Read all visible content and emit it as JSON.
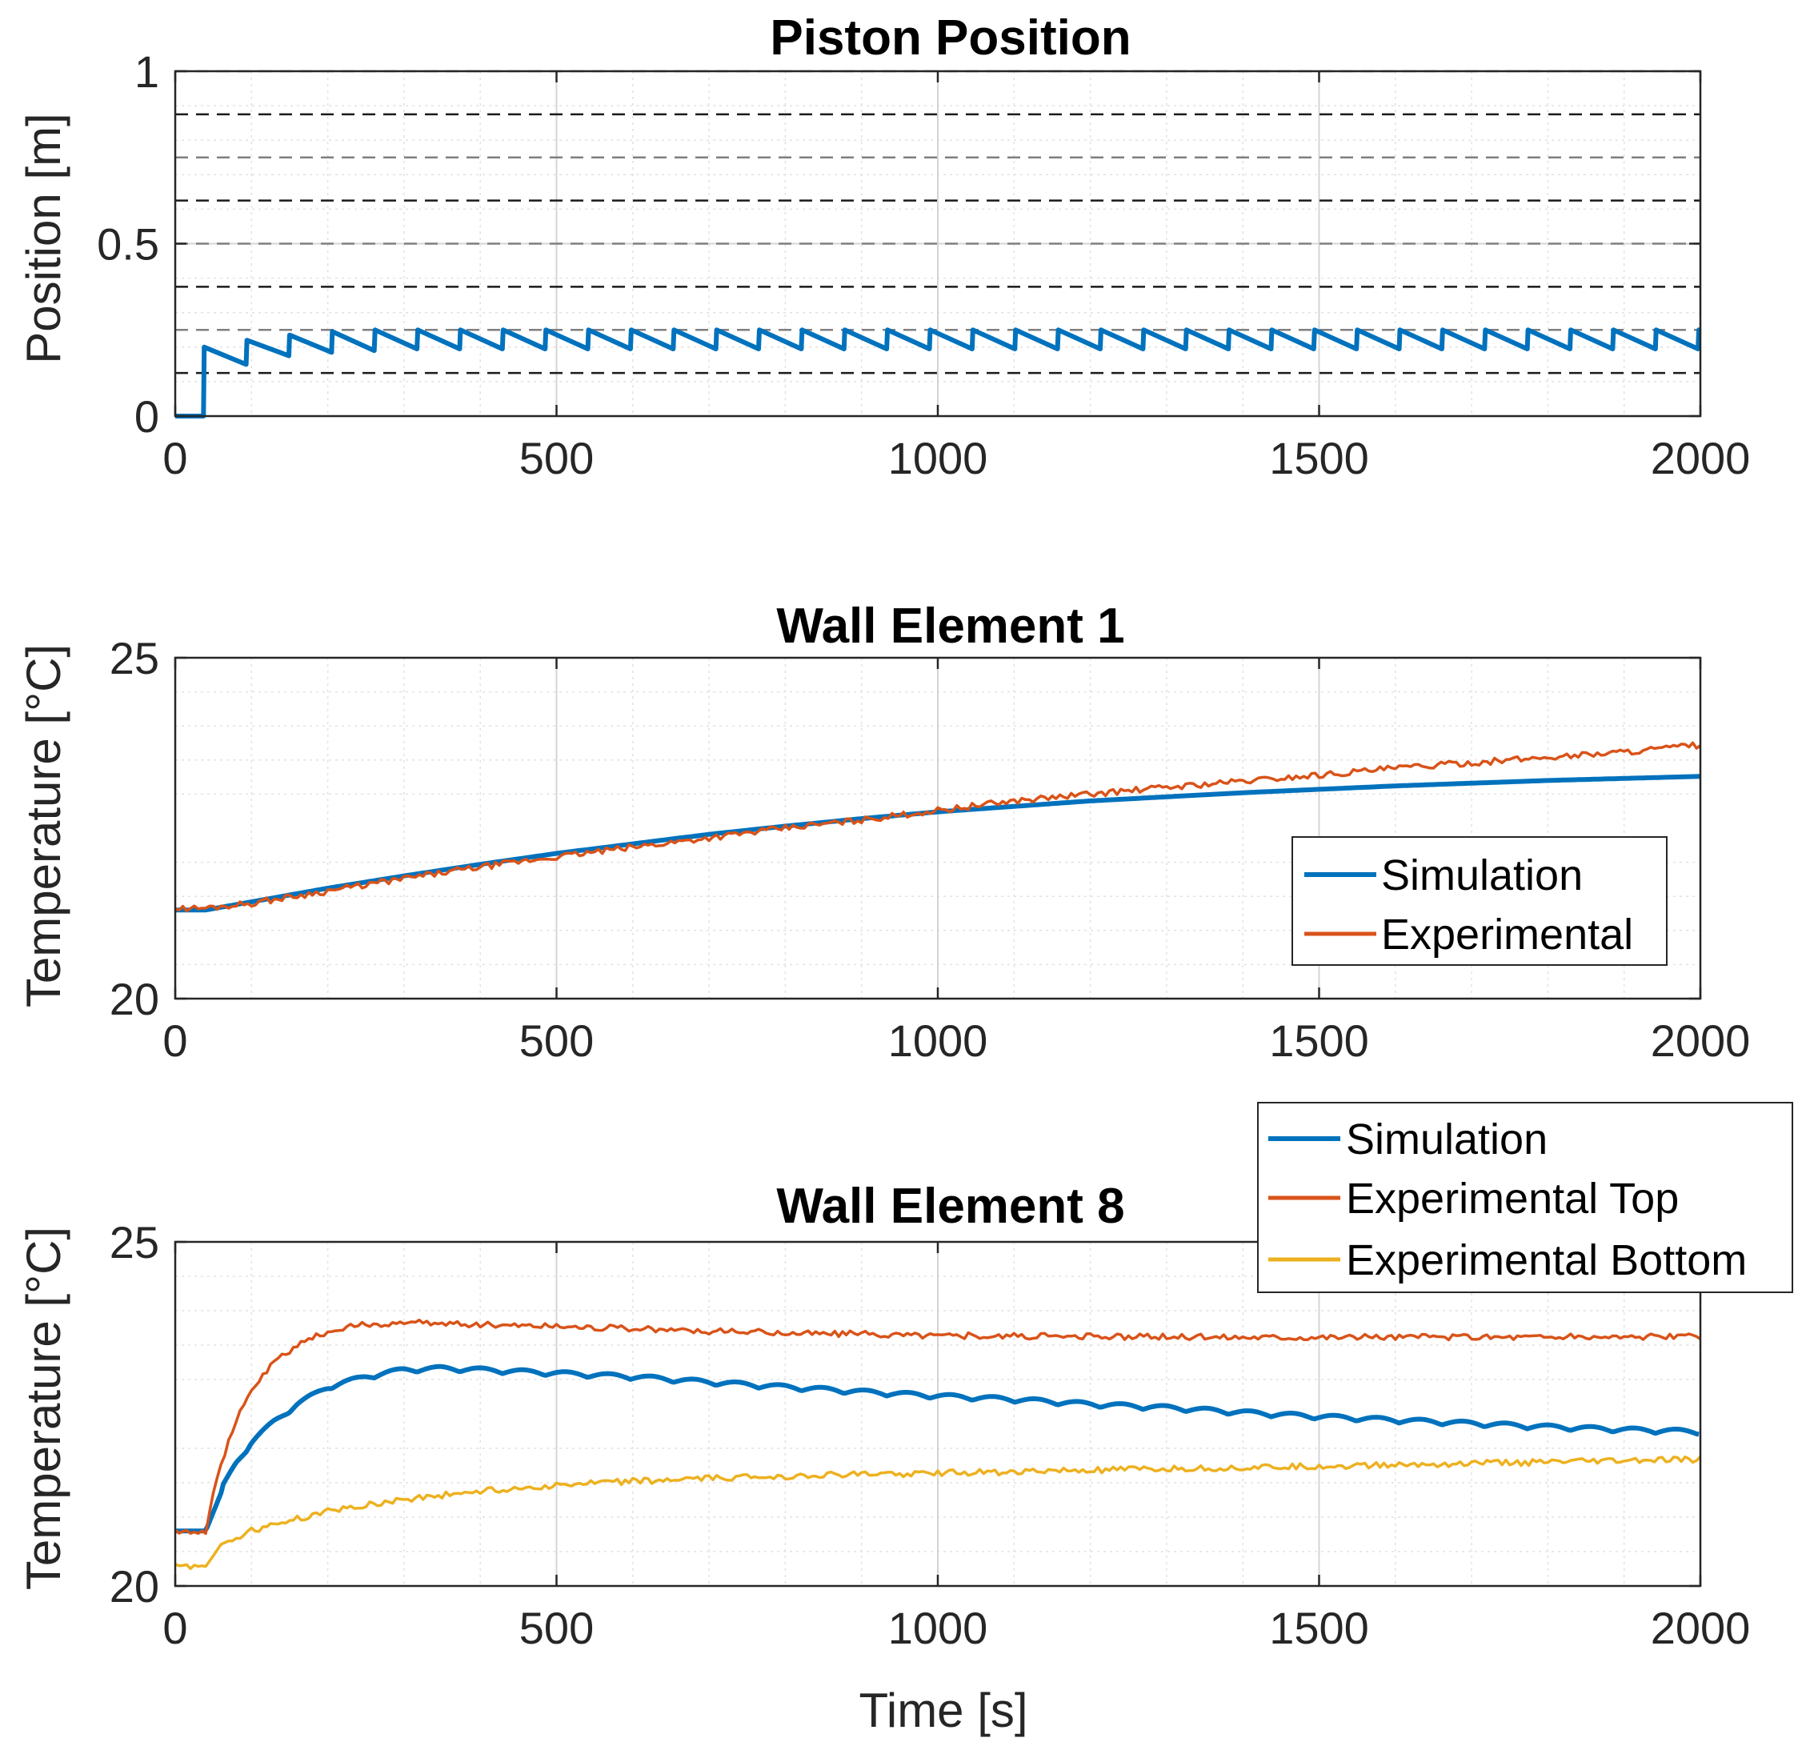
{
  "chart_data": [
    {
      "type": "line",
      "title": "Piston Position",
      "xlabel": "",
      "ylabel": "Position [m]",
      "xlim": [
        0,
        2000
      ],
      "ylim": [
        0,
        1
      ],
      "xticks": [
        0,
        500,
        1000,
        1500,
        2000
      ],
      "xtick_labels": [
        "0",
        "500",
        "1000",
        "1500",
        "2000"
      ],
      "yticks": [
        0,
        0.5,
        1
      ],
      "ytick_labels": [
        "0",
        "0.5",
        "1"
      ],
      "grid": true,
      "reference_lines": {
        "description": "horizontal dashed lines",
        "values": [
          0.125,
          0.25,
          0.375,
          0.5,
          0.625,
          0.75,
          0.875,
          1.0
        ]
      },
      "series": [
        {
          "name": "Piston position",
          "color": "#0072BD",
          "kind": "sawtooth",
          "start_time": 37,
          "initial_value": 0,
          "cycle_period": 56,
          "peak_values": [
            0.2,
            0.22,
            0.235,
            0.245,
            0.25
          ],
          "trough_values": [
            0.15,
            0.175,
            0.185,
            0.19,
            0.195
          ],
          "end_value": 0.21
        }
      ]
    },
    {
      "type": "line",
      "title": "Wall Element 1",
      "xlabel": "",
      "ylabel": "Temperature [°C]",
      "xlim": [
        0,
        2000
      ],
      "ylim": [
        20,
        25
      ],
      "xticks": [
        0,
        500,
        1000,
        1500,
        2000
      ],
      "xtick_labels": [
        "0",
        "500",
        "1000",
        "1500",
        "2000"
      ],
      "yticks": [
        20,
        25
      ],
      "ytick_labels": [
        "20",
        "25"
      ],
      "grid": true,
      "legend": {
        "position": "inside-right",
        "entries": [
          "Simulation",
          "Experimental"
        ]
      },
      "series": [
        {
          "name": "Simulation",
          "color": "#0072BD",
          "x": [
            0,
            40,
            100,
            200,
            300,
            400,
            500,
            600,
            700,
            800,
            900,
            1000,
            1100,
            1200,
            1300,
            1400,
            1500,
            1600,
            1700,
            1800,
            1900,
            2000
          ],
          "y": [
            21.3,
            21.3,
            21.42,
            21.62,
            21.8,
            21.97,
            22.13,
            22.27,
            22.41,
            22.53,
            22.64,
            22.74,
            22.82,
            22.9,
            22.96,
            23.02,
            23.07,
            23.12,
            23.16,
            23.2,
            23.23,
            23.26
          ]
        },
        {
          "name": "Experimental",
          "color": "#D95319",
          "x": [
            0,
            40,
            100,
            200,
            300,
            400,
            500,
            600,
            700,
            800,
            900,
            1000,
            1100,
            1200,
            1300,
            1400,
            1500,
            1600,
            1700,
            1800,
            1900,
            2000
          ],
          "y": [
            21.32,
            21.33,
            21.4,
            21.58,
            21.76,
            21.93,
            22.08,
            22.22,
            22.36,
            22.5,
            22.62,
            22.76,
            22.9,
            23.0,
            23.1,
            23.19,
            23.28,
            23.38,
            23.46,
            23.54,
            23.62,
            23.72
          ]
        }
      ]
    },
    {
      "type": "line",
      "title": "Wall Element 8",
      "xlabel": "Time [s]",
      "ylabel": "Temperature [°C]",
      "xlim": [
        0,
        2000
      ],
      "ylim": [
        20,
        25
      ],
      "xticks": [
        0,
        500,
        1000,
        1500,
        2000
      ],
      "xtick_labels": [
        "0",
        "500",
        "1000",
        "1500",
        "2000"
      ],
      "yticks": [
        20,
        25
      ],
      "ytick_labels": [
        "20",
        "25"
      ],
      "grid": true,
      "legend": {
        "position": "top-right",
        "entries": [
          "Simulation",
          "Experimental Top",
          "Experimental Bottom"
        ]
      },
      "series": [
        {
          "name": "Simulation",
          "color": "#0072BD",
          "x": [
            0,
            40,
            60,
            80,
            100,
            130,
            160,
            200,
            250,
            300,
            350,
            400,
            500,
            600,
            700,
            800,
            900,
            1000,
            1100,
            1200,
            1300,
            1400,
            1500,
            1600,
            1700,
            1800,
            1900,
            2000
          ],
          "y": [
            20.8,
            20.8,
            21.35,
            21.75,
            22.05,
            22.35,
            22.6,
            22.85,
            23.0,
            23.1,
            23.12,
            23.1,
            23.05,
            23.0,
            22.92,
            22.85,
            22.78,
            22.72,
            22.67,
            22.6,
            22.55,
            22.48,
            22.42,
            22.37,
            22.32,
            22.27,
            22.23,
            22.2
          ]
        },
        {
          "name": "Experimental Top",
          "color": "#D95319",
          "x": [
            0,
            40,
            55,
            80,
            100,
            130,
            160,
            200,
            250,
            300,
            350,
            400,
            500,
            600,
            700,
            800,
            900,
            1000,
            1100,
            1200,
            1300,
            1400,
            1500,
            1600,
            1700,
            1800,
            1900,
            2000
          ],
          "y": [
            20.8,
            20.8,
            21.6,
            22.4,
            22.85,
            23.25,
            23.5,
            23.7,
            23.8,
            23.82,
            23.82,
            23.8,
            23.78,
            23.74,
            23.7,
            23.68,
            23.66,
            23.64,
            23.63,
            23.62,
            23.62,
            23.62,
            23.62,
            23.62,
            23.62,
            23.62,
            23.62,
            23.62
          ]
        },
        {
          "name": "Experimental Bottom",
          "color": "#EDB120",
          "x": [
            0,
            40,
            55,
            80,
            100,
            150,
            200,
            250,
            300,
            400,
            500,
            600,
            700,
            800,
            900,
            1000,
            1100,
            1200,
            1300,
            1400,
            1500,
            1600,
            1700,
            1800,
            1900,
            2000
          ],
          "y": [
            20.28,
            20.3,
            20.55,
            20.7,
            20.8,
            20.95,
            21.08,
            21.18,
            21.26,
            21.38,
            21.46,
            21.52,
            21.56,
            21.6,
            21.62,
            21.64,
            21.66,
            21.68,
            21.7,
            21.72,
            21.74,
            21.76,
            21.78,
            21.8,
            21.82,
            21.84
          ]
        }
      ]
    }
  ]
}
